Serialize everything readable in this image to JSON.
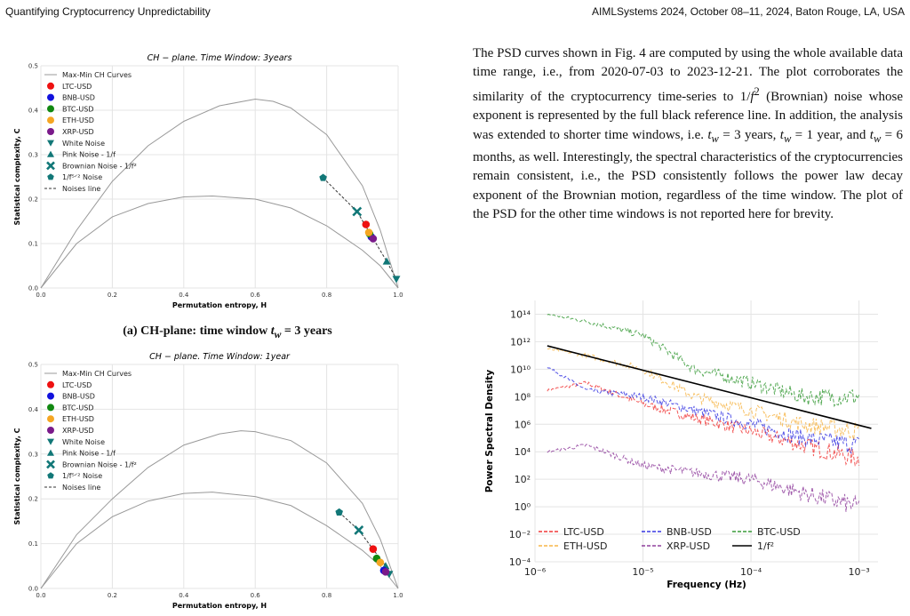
{
  "header": {
    "left": "Quantifying Cryptocurrency Unpredictability",
    "right": "AIMLSystems 2024, October 08–11, 2024, Baton Rouge, LA, USA"
  },
  "paragraph": {
    "text": "The PSD curves shown in Fig. 4 are computed by using the whole available data time range, i.e., from 2020-07-03 to 2023-12-21. The plot corroborates the similarity of the cryptocurrency time-series to 1/f² (Brownian) noise whose exponent is represented by the full black reference line. In addition, the analysis was extended to shorter time windows, i.e. t_w = 3 years, t_w = 1 year, and t_w = 6 months, as well. Interestingly, the spectral characteristics of the cryptocurrencies remain consistent, i.e., the PSD consistently follows the power law decay exponent of the Brownian motion, regardless of the time window. The plot of the PSD for the other time windows is not reported here for brevity."
  },
  "caption_a": "(a) CH-plane: time window t_w = 3 years",
  "colors": {
    "LTC": "#ee1111",
    "BNB": "#1111dd",
    "BTC": "#118811",
    "ETH": "#f5a623",
    "XRP": "#7a1a8a",
    "noise": "#117777",
    "curve": "#999999",
    "grid": "#e4e4e4"
  },
  "chart_data": [
    {
      "type": "scatter",
      "title": "CH − plane. Time Window: 3years",
      "xlabel": "Permutation entropy, H",
      "ylabel": "Statistical complexity, C",
      "xlim": [
        0,
        1
      ],
      "ylim": [
        0,
        0.5
      ],
      "xticks": [
        "0.0",
        "0.2",
        "0.4",
        "0.6",
        "0.8",
        "1.0"
      ],
      "yticks": [
        "0.0",
        "0.1",
        "0.2",
        "0.3",
        "0.4",
        "0.5"
      ],
      "legend": [
        "Max-Min CH Curves",
        "LTC-USD",
        "BNB-USD",
        "BTC-USD",
        "ETH-USD",
        "XRP-USD",
        "White Noise",
        "Pink Noise - 1/f",
        "Brownian Noise - 1/f²",
        "1/f^{5/2} Noise",
        "Noises line"
      ],
      "legend_position": "top-left",
      "max_curve": [
        [
          0,
          0
        ],
        [
          0.1,
          0.13
        ],
        [
          0.2,
          0.24
        ],
        [
          0.3,
          0.32
        ],
        [
          0.4,
          0.375
        ],
        [
          0.5,
          0.41
        ],
        [
          0.6,
          0.425
        ],
        [
          0.65,
          0.42
        ],
        [
          0.7,
          0.405
        ],
        [
          0.8,
          0.345
        ],
        [
          0.9,
          0.23
        ],
        [
          0.95,
          0.13
        ],
        [
          1.0,
          0
        ]
      ],
      "min_curve": [
        [
          0,
          0
        ],
        [
          0.1,
          0.1
        ],
        [
          0.2,
          0.16
        ],
        [
          0.3,
          0.19
        ],
        [
          0.4,
          0.205
        ],
        [
          0.48,
          0.207
        ],
        [
          0.6,
          0.2
        ],
        [
          0.7,
          0.18
        ],
        [
          0.8,
          0.14
        ],
        [
          0.9,
          0.085
        ],
        [
          0.95,
          0.05
        ],
        [
          1.0,
          0
        ]
      ],
      "points": [
        {
          "series": "LTC-USD",
          "x": 0.91,
          "y": 0.143
        },
        {
          "series": "BNB-USD",
          "x": 0.925,
          "y": 0.115
        },
        {
          "series": "BTC-USD",
          "x": 0.92,
          "y": 0.122
        },
        {
          "series": "ETH-USD",
          "x": 0.918,
          "y": 0.125
        },
        {
          "series": "XRP-USD",
          "x": 0.93,
          "y": 0.111
        }
      ],
      "noises": [
        {
          "series": "1/f^{5/2} Noise",
          "x": 0.79,
          "y": 0.248
        },
        {
          "series": "Brownian Noise - 1/f²",
          "x": 0.885,
          "y": 0.172
        },
        {
          "series": "Pink Noise - 1/f",
          "x": 0.968,
          "y": 0.06
        },
        {
          "series": "White Noise",
          "x": 0.995,
          "y": 0.02
        }
      ]
    },
    {
      "type": "scatter",
      "title": "CH − plane. Time Window: 1year",
      "xlabel": "Permutation entropy, H",
      "ylabel": "Statistical complexity, C",
      "xlim": [
        0,
        1
      ],
      "ylim": [
        0,
        0.5
      ],
      "xticks": [
        "0.0",
        "0.2",
        "0.4",
        "0.6",
        "0.8",
        "1.0"
      ],
      "yticks": [
        "0.0",
        "0.1",
        "0.2",
        "0.3",
        "0.4",
        "0.5"
      ],
      "legend": [
        "Max-Min CH Curves",
        "LTC-USD",
        "BNB-USD",
        "BTC-USD",
        "ETH-USD",
        "XRP-USD",
        "White Noise",
        "Pink Noise - 1/f",
        "Brownian Noise - 1/f²",
        "1/f^{5/2} Noise",
        "Noises line"
      ],
      "legend_position": "top-left",
      "max_curve": [
        [
          0,
          0
        ],
        [
          0.1,
          0.12
        ],
        [
          0.2,
          0.2
        ],
        [
          0.3,
          0.27
        ],
        [
          0.4,
          0.32
        ],
        [
          0.5,
          0.345
        ],
        [
          0.56,
          0.352
        ],
        [
          0.6,
          0.35
        ],
        [
          0.7,
          0.33
        ],
        [
          0.8,
          0.28
        ],
        [
          0.9,
          0.19
        ],
        [
          0.95,
          0.11
        ],
        [
          1.0,
          0
        ]
      ],
      "min_curve": [
        [
          0,
          0
        ],
        [
          0.1,
          0.1
        ],
        [
          0.2,
          0.16
        ],
        [
          0.3,
          0.195
        ],
        [
          0.4,
          0.212
        ],
        [
          0.48,
          0.215
        ],
        [
          0.6,
          0.205
        ],
        [
          0.7,
          0.185
        ],
        [
          0.8,
          0.14
        ],
        [
          0.9,
          0.085
        ],
        [
          0.95,
          0.05
        ],
        [
          1.0,
          0
        ]
      ],
      "points": [
        {
          "series": "LTC-USD",
          "x": 0.93,
          "y": 0.088
        },
        {
          "series": "BNB-USD",
          "x": 0.96,
          "y": 0.04
        },
        {
          "series": "BTC-USD",
          "x": 0.94,
          "y": 0.067
        },
        {
          "series": "ETH-USD",
          "x": 0.95,
          "y": 0.058
        },
        {
          "series": "XRP-USD",
          "x": 0.965,
          "y": 0.037
        }
      ],
      "noises": [
        {
          "series": "1/f^{5/2} Noise",
          "x": 0.835,
          "y": 0.17
        },
        {
          "series": "Brownian Noise - 1/f²",
          "x": 0.89,
          "y": 0.13
        },
        {
          "series": "Pink Noise - 1/f",
          "x": 0.965,
          "y": 0.05
        },
        {
          "series": "White Noise",
          "x": 0.975,
          "y": 0.032
        }
      ]
    },
    {
      "type": "line",
      "xlabel": "Frequency (Hz)",
      "ylabel": "Power Spectral Density",
      "xscale": "log",
      "yscale": "log",
      "xlim": [
        1e-06,
        0.0015
      ],
      "ylim": [
        0.0001,
        1000000000000000.0
      ],
      "xticks": [
        "10⁻⁶",
        "10⁻⁵",
        "10⁻⁴",
        "10⁻³"
      ],
      "yticks": [
        "10⁻⁴",
        "10⁻²",
        "10⁰",
        "10²",
        "10⁴",
        "10⁶",
        "10⁸",
        "10¹⁰",
        "10¹²",
        "10¹⁴"
      ],
      "legend_position": "bottom-left",
      "series": [
        {
          "name": "LTC-USD",
          "style": "dashed",
          "x": [
            1.3e-06,
            3e-06,
            1e-05,
            3e-05,
            0.0001,
            0.0003,
            0.001
          ],
          "y": [
            300000000.0,
            1000000000.0,
            30000000.0,
            3000000.0,
            300000.0,
            30000.0,
            3000.0
          ]
        },
        {
          "name": "BNB-USD",
          "style": "dashed",
          "x": [
            1.3e-06,
            3e-06,
            1e-05,
            3e-05,
            0.0001,
            0.0003,
            0.001
          ],
          "y": [
            15000000000.0,
            300000000.0,
            100000000.0,
            10000000.0,
            1000000.0,
            100000.0,
            30000.0
          ]
        },
        {
          "name": "BTC-USD",
          "style": "dashed",
          "x": [
            1.3e-06,
            3e-06,
            1e-05,
            3e-05,
            0.0001,
            0.0003,
            0.001
          ],
          "y": [
            100000000000000.0,
            30000000000000.0,
            3000000000000.0,
            10000000000.0,
            1000000000.0,
            100000000.0,
            100000000.0
          ]
        },
        {
          "name": "ETH-USD",
          "style": "dashed",
          "x": [
            1.3e-06,
            3e-06,
            1e-05,
            3e-05,
            0.0001,
            0.0003,
            0.001
          ],
          "y": [
            300000000000.0,
            100000000000.0,
            10000000000.0,
            100000000.0,
            10000000.0,
            1000000.0,
            300000.0
          ]
        },
        {
          "name": "XRP-USD",
          "style": "dashed",
          "x": [
            1.3e-06,
            3e-06,
            1e-05,
            3e-05,
            0.0001,
            0.0003,
            0.001
          ],
          "y": [
            10000.0,
            30000.0,
            1000.0,
            300.0,
            100.0,
            10.0,
            1.0
          ]
        },
        {
          "name": "1/f²",
          "style": "solid",
          "x": [
            1.3e-06,
            0.0013
          ],
          "y": [
            500000000000.0,
            500000.0
          ]
        }
      ]
    }
  ]
}
